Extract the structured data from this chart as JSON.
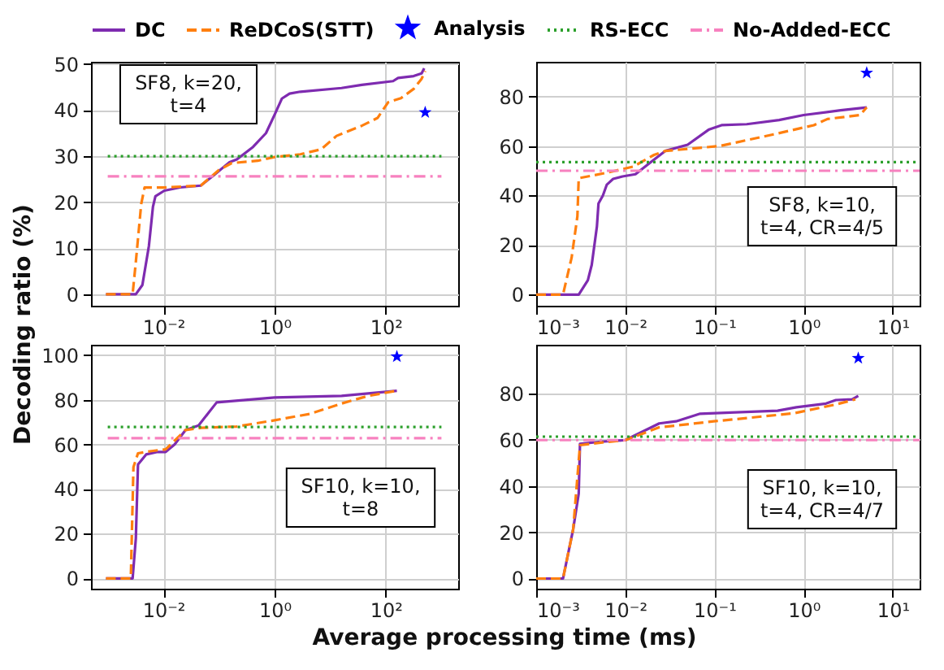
{
  "chart_data": [
    {
      "type": "line",
      "log": "x",
      "grid": true,
      "legend": "top",
      "xlim": [
        0.0005,
        2000
      ],
      "xticks": [
        {
          "value": 0.01,
          "label": "10⁻²"
        },
        {
          "value": 1,
          "label": "10⁰"
        },
        {
          "value": 100,
          "label": "10²"
        }
      ],
      "ylim": [
        -2.5,
        50.5
      ],
      "yticks": [
        0,
        10,
        20,
        30,
        40,
        50
      ],
      "annotations": [
        "SF8, k=20,\nt=4"
      ],
      "series": [
        {
          "name": "DC",
          "color": "#7e2bb0",
          "x": [
            0.00093,
            0.0032,
            0.0042,
            0.0055,
            0.0065,
            0.0072,
            0.0104,
            0.02,
            0.047,
            0.08,
            0.155,
            0.21,
            0.41,
            0.7,
            1.0,
            1.35,
            1.86,
            2.9,
            16,
            37,
            135,
            166,
            316,
            440,
            490
          ],
          "values": [
            0,
            0,
            2,
            10.5,
            19,
            21.3,
            22.5,
            23.2,
            23.6,
            25.8,
            28.7,
            29.3,
            32,
            35,
            39,
            42.5,
            43.6,
            44,
            44.8,
            45.5,
            46.3,
            47,
            47.4,
            48,
            49.1
          ]
        },
        {
          "name": "ReDCoS(STT)",
          "color": "#ff7f0e",
          "line_style": "dashed",
          "x": [
            0.00093,
            0.0028,
            0.0032,
            0.004,
            0.0046,
            0.0104,
            0.047,
            0.1,
            0.17,
            0.5,
            1.0,
            2.9,
            6.9,
            13,
            37,
            71,
            110,
            187,
            316,
            440,
            510
          ],
          "values": [
            0,
            0,
            7,
            19.6,
            23.2,
            23.2,
            23.6,
            27,
            28.5,
            29,
            29.8,
            30.4,
            31.5,
            34.4,
            36.6,
            38.3,
            41.7,
            42.6,
            44.6,
            46.8,
            48.5
          ]
        },
        {
          "name": "Analysis",
          "type": "scatter",
          "marker": "star",
          "color": "#0000ff",
          "x": [
            510
          ],
          "values": [
            39.5
          ]
        },
        {
          "name": "RS-ECC",
          "color": "#2ca02c",
          "line_style": "dotted",
          "x": [
            0.001,
            1000
          ],
          "values": [
            30,
            30
          ]
        },
        {
          "name": "No-Added-ECC",
          "color": "#f781bf",
          "line_style": "dashdot",
          "x": [
            0.001,
            1000
          ],
          "values": [
            25.6,
            25.6
          ]
        }
      ]
    },
    {
      "type": "line",
      "log": "x",
      "grid": true,
      "xlim": [
        0.001,
        20
      ],
      "xticks": [
        {
          "value": 0.001,
          "label": "10⁻³"
        },
        {
          "value": 0.01,
          "label": "10⁻²"
        },
        {
          "value": 0.1,
          "label": "10⁻¹"
        },
        {
          "value": 1,
          "label": "10⁰"
        },
        {
          "value": 10,
          "label": "10¹"
        }
      ],
      "ylim": [
        -4.5,
        94
      ],
      "yticks": [
        0,
        20,
        40,
        60,
        80
      ],
      "annotations": [
        "SF8, k=10,\nt=4, CR=4/5"
      ],
      "series": [
        {
          "name": "DC",
          "color": "#7e2bb0",
          "x": [
            0.001,
            0.003,
            0.0038,
            0.0042,
            0.0048,
            0.005,
            0.0056,
            0.0062,
            0.0073,
            0.0093,
            0.013,
            0.019,
            0.028,
            0.05,
            0.087,
            0.12,
            0.23,
            0.53,
            1.0,
            2.6,
            5.1
          ],
          "values": [
            0,
            0,
            5.8,
            12,
            27.5,
            36.8,
            40,
            44.4,
            46.7,
            47.7,
            48.6,
            53.3,
            58,
            60.5,
            66.7,
            68.4,
            68.8,
            70.5,
            72.5,
            74.4,
            75.6
          ]
        },
        {
          "name": "ReDCoS(STT)",
          "color": "#ff7f0e",
          "line_style": "dashed",
          "x": [
            0.001,
            0.002,
            0.0025,
            0.0029,
            0.003,
            0.0062,
            0.0123,
            0.021,
            0.028,
            0.115,
            0.46,
            1.3,
            1.85,
            4.3,
            5.1
          ],
          "values": [
            0,
            0,
            15,
            31.6,
            47,
            49.2,
            51.7,
            56.4,
            58,
            60,
            64.7,
            68.4,
            70.9,
            72.5,
            75.6
          ]
        },
        {
          "name": "Analysis",
          "type": "scatter",
          "marker": "star",
          "color": "#0000ff",
          "x": [
            5.1
          ],
          "values": [
            89.5
          ]
        },
        {
          "name": "RS-ECC",
          "color": "#2ca02c",
          "line_style": "dotted",
          "x": [
            0.001,
            20
          ],
          "values": [
            53.5,
            53.5
          ]
        },
        {
          "name": "No-Added-ECC",
          "color": "#f781bf",
          "line_style": "dashdot",
          "x": [
            0.001,
            20
          ],
          "values": [
            50,
            50
          ]
        }
      ]
    },
    {
      "type": "line",
      "log": "x",
      "grid": true,
      "xlabel": "Average processing time (ms)",
      "ylabel": "Decoding ratio (%)",
      "xlim": [
        0.0005,
        2000
      ],
      "xticks": [
        {
          "value": 0.01,
          "label": "10⁻²"
        },
        {
          "value": 1,
          "label": "10⁰"
        },
        {
          "value": 100,
          "label": "10²"
        }
      ],
      "ylim": [
        -4.6,
        104.6
      ],
      "yticks": [
        0,
        20,
        40,
        60,
        80,
        100
      ],
      "annotations": [
        "SF10, k=10,\nt=8"
      ],
      "series": [
        {
          "name": "DC",
          "color": "#7e2bb0",
          "x": [
            0.00093,
            0.0028,
            0.0032,
            0.0035,
            0.0049,
            0.0076,
            0.011,
            0.016,
            0.025,
            0.043,
            0.091,
            0.33,
            1.0,
            16,
            158
          ],
          "values": [
            0,
            0,
            17.8,
            51,
            55.5,
            56.6,
            56.6,
            60,
            66.4,
            68.5,
            78.8,
            80,
            81,
            81.7,
            84
          ]
        },
        {
          "name": "ReDCoS(STT)",
          "color": "#ff7f0e",
          "line_style": "dashed",
          "x": [
            0.00093,
            0.0026,
            0.0029,
            0.0035,
            0.0061,
            0.011,
            0.025,
            0.048,
            0.21,
            1.0,
            4.4,
            16,
            48,
            158
          ],
          "values": [
            0,
            0,
            49.8,
            56,
            57,
            57.8,
            66.4,
            67.4,
            68,
            70.8,
            73.7,
            78.3,
            81.7,
            84
          ]
        },
        {
          "name": "Analysis",
          "type": "scatter",
          "marker": "star",
          "color": "#0000ff",
          "x": [
            158
          ],
          "values": [
            99.3
          ]
        },
        {
          "name": "RS-ECC",
          "color": "#2ca02c",
          "line_style": "dotted",
          "x": [
            0.001,
            1000
          ],
          "values": [
            67.8,
            67.8
          ]
        },
        {
          "name": "No-Added-ECC",
          "color": "#f781bf",
          "line_style": "dashdot",
          "x": [
            0.001,
            1000
          ],
          "values": [
            62.8,
            62.8
          ]
        }
      ]
    },
    {
      "type": "line",
      "log": "x",
      "grid": true,
      "xlim": [
        0.001,
        20
      ],
      "xticks": [
        {
          "value": 0.001,
          "label": "10⁻³"
        },
        {
          "value": 0.01,
          "label": "10⁻²"
        },
        {
          "value": 0.1,
          "label": "10⁻¹"
        },
        {
          "value": 1,
          "label": "10⁰"
        },
        {
          "value": 10,
          "label": "10¹"
        }
      ],
      "ylim": [
        -4.4,
        101
      ],
      "yticks": [
        0,
        20,
        40,
        60,
        80
      ],
      "annotations": [
        "SF10, k=10,\nt=4, CR=4/7"
      ],
      "series": [
        {
          "name": "DC",
          "color": "#7e2bb0",
          "x": [
            0.001,
            0.002,
            0.0026,
            0.003,
            0.0031,
            0.0053,
            0.01,
            0.024,
            0.037,
            0.069,
            0.51,
            0.83,
            1.78,
            2.3,
            3.5,
            4.1
          ],
          "values": [
            0,
            0,
            21.3,
            36.7,
            58.2,
            59.1,
            59.8,
            67,
            67.9,
            71.2,
            72.5,
            74,
            75.6,
            77.1,
            77.4,
            78.9
          ]
        },
        {
          "name": "ReDCoS(STT)",
          "color": "#ff7f0e",
          "line_style": "dashed",
          "x": [
            0.001,
            0.002,
            0.0026,
            0.0031,
            0.0053,
            0.01,
            0.024,
            0.098,
            0.78,
            2.3,
            3.8
          ],
          "values": [
            0,
            0,
            21.3,
            57.6,
            58.7,
            59.8,
            65.3,
            67.9,
            71.4,
            75.2,
            77.4
          ]
        },
        {
          "name": "Analysis",
          "type": "scatter",
          "marker": "star",
          "color": "#0000ff",
          "x": [
            4.1
          ],
          "values": [
            95.2
          ]
        },
        {
          "name": "RS-ECC",
          "color": "#2ca02c",
          "line_style": "dotted",
          "x": [
            0.001,
            20
          ],
          "values": [
            61.3,
            61.3
          ]
        },
        {
          "name": "No-Added-ECC",
          "color": "#f781bf",
          "line_style": "dashdot",
          "x": [
            0.001,
            20
          ],
          "values": [
            59.8,
            59.8
          ]
        }
      ]
    }
  ]
}
